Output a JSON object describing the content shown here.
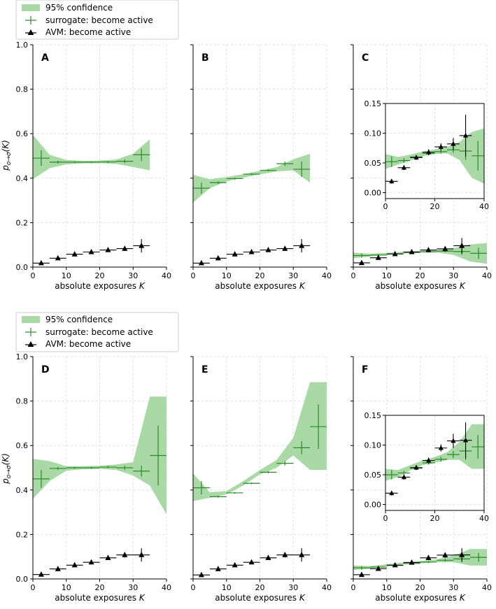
{
  "legend": {
    "confidence_label": "95% confidence",
    "surrogate_label": "surrogate: become active",
    "avm_label": "AVM: become active"
  },
  "colors": {
    "band": "#a9d9a4",
    "surrogate": "#2a8a2a",
    "avm": "#000000",
    "grid": "#d9d9d9"
  },
  "y_axis_label": "p_{o→σ}(K)",
  "chart_data": [
    {
      "type": "line",
      "panel": "A",
      "xlabel": "absolute exposures K",
      "ylabel": "p_{o→σ}(K)",
      "xlim": [
        0,
        40
      ],
      "ylim": [
        0,
        1.0
      ],
      "xticks": [
        0,
        10,
        20,
        30,
        40
      ],
      "yticks": [
        0.0,
        0.2,
        0.4,
        0.6,
        0.8,
        1.0
      ],
      "ytick_labels": [
        "0.0",
        "0.2",
        "0.4",
        "0.6",
        "0.8",
        "1.0"
      ],
      "band": [
        [
          0,
          0.395,
          0.595
        ],
        [
          5,
          0.445,
          0.505
        ],
        [
          10,
          0.462,
          0.482
        ],
        [
          15,
          0.466,
          0.478
        ],
        [
          20,
          0.467,
          0.479
        ],
        [
          25,
          0.464,
          0.484
        ],
        [
          30,
          0.45,
          0.51
        ],
        [
          35,
          0.435,
          0.575
        ]
      ],
      "surrogate": [
        [
          2.5,
          0.49,
          0.035
        ],
        [
          7.5,
          0.472,
          0.006
        ],
        [
          12.5,
          0.472,
          0.004
        ],
        [
          17.5,
          0.472,
          0.003
        ],
        [
          22.5,
          0.473,
          0.004
        ],
        [
          27.5,
          0.476,
          0.008
        ],
        [
          32.5,
          0.505,
          0.028
        ]
      ],
      "avm": [
        [
          2.5,
          0.018,
          0.003
        ],
        [
          7.5,
          0.04,
          0.004
        ],
        [
          12.5,
          0.058,
          0.005
        ],
        [
          17.5,
          0.068,
          0.006
        ],
        [
          22.5,
          0.077,
          0.007
        ],
        [
          27.5,
          0.083,
          0.01
        ],
        [
          32.5,
          0.096,
          0.03
        ]
      ],
      "inset": null
    },
    {
      "type": "line",
      "panel": "B",
      "xlabel": "absolute exposures K",
      "ylabel": "",
      "xlim": [
        0,
        40
      ],
      "ylim": [
        0,
        1.0
      ],
      "xticks": [
        0,
        10,
        20,
        30,
        40
      ],
      "yticks": [
        0.0,
        0.2,
        0.4,
        0.6,
        0.8,
        1.0
      ],
      "ytick_labels": [],
      "band": [
        [
          0,
          0.29,
          0.415
        ],
        [
          5,
          0.355,
          0.395
        ],
        [
          10,
          0.385,
          0.405
        ],
        [
          15,
          0.402,
          0.418
        ],
        [
          20,
          0.417,
          0.433
        ],
        [
          25,
          0.43,
          0.45
        ],
        [
          30,
          0.435,
          0.485
        ],
        [
          35,
          0.38,
          0.51
        ]
      ],
      "surrogate": [
        [
          2.5,
          0.355,
          0.025
        ],
        [
          7.5,
          0.38,
          0.006
        ],
        [
          12.5,
          0.398,
          0.004
        ],
        [
          17.5,
          0.418,
          0.004
        ],
        [
          22.5,
          0.435,
          0.004
        ],
        [
          27.5,
          0.465,
          0.01
        ],
        [
          32.5,
          0.44,
          0.035
        ]
      ],
      "avm": [
        [
          2.5,
          0.018,
          0.003
        ],
        [
          7.5,
          0.04,
          0.004
        ],
        [
          12.5,
          0.058,
          0.005
        ],
        [
          17.5,
          0.068,
          0.006
        ],
        [
          22.5,
          0.077,
          0.007
        ],
        [
          27.5,
          0.083,
          0.01
        ],
        [
          32.5,
          0.096,
          0.03
        ]
      ],
      "inset": null
    },
    {
      "type": "line",
      "panel": "C",
      "xlabel": "absolute exposures K",
      "ylabel": "",
      "xlim": [
        0,
        40
      ],
      "ylim": [
        0,
        1.0
      ],
      "xticks": [
        0,
        10,
        20,
        30,
        40
      ],
      "yticks": [
        0.0,
        0.2,
        0.4,
        0.6,
        0.8,
        1.0
      ],
      "ytick_labels": [],
      "band": [
        [
          0,
          0.04,
          0.065
        ],
        [
          5,
          0.047,
          0.06
        ],
        [
          10,
          0.054,
          0.064
        ],
        [
          15,
          0.061,
          0.069
        ],
        [
          20,
          0.065,
          0.073
        ],
        [
          25,
          0.066,
          0.077
        ],
        [
          30,
          0.055,
          0.085
        ],
        [
          35,
          0.025,
          0.102
        ],
        [
          40,
          0.015,
          0.108
        ]
      ],
      "surrogate": [
        [
          2.5,
          0.052,
          0.009
        ],
        [
          7.5,
          0.054,
          0.004
        ],
        [
          12.5,
          0.06,
          0.003
        ],
        [
          17.5,
          0.066,
          0.003
        ],
        [
          22.5,
          0.069,
          0.003
        ],
        [
          27.5,
          0.072,
          0.005
        ],
        [
          32.5,
          0.07,
          0.015
        ],
        [
          37.5,
          0.062,
          0.025
        ]
      ],
      "avm": [
        [
          2.5,
          0.019,
          0.004
        ],
        [
          7.5,
          0.042,
          0.004
        ],
        [
          12.5,
          0.059,
          0.004
        ],
        [
          17.5,
          0.068,
          0.005
        ],
        [
          22.5,
          0.077,
          0.006
        ],
        [
          27.5,
          0.082,
          0.01
        ],
        [
          32.5,
          0.096,
          0.035
        ]
      ],
      "inset": {
        "xlim": [
          0,
          40
        ],
        "ylim": [
          -0.01,
          0.15
        ],
        "xticks": [
          0,
          20,
          40
        ],
        "yticks": [
          0.0,
          0.05,
          0.1,
          0.15
        ],
        "ytick_labels": [
          "0.00",
          "0.05",
          "0.10",
          "0.15"
        ]
      }
    },
    {
      "type": "line",
      "panel": "D",
      "xlabel": "absolute exposures K",
      "ylabel": "p_{o→σ}(K)",
      "xlim": [
        0,
        40
      ],
      "ylim": [
        0,
        1.0
      ],
      "xticks": [
        0,
        10,
        20,
        30,
        40
      ],
      "yticks": [
        0.0,
        0.2,
        0.4,
        0.6,
        0.8,
        1.0
      ],
      "ytick_labels": [
        "0.0",
        "0.2",
        "0.4",
        "0.6",
        "0.8",
        "1.0"
      ],
      "band": [
        [
          0,
          0.36,
          0.54
        ],
        [
          5,
          0.44,
          0.53
        ],
        [
          10,
          0.487,
          0.507
        ],
        [
          15,
          0.493,
          0.507
        ],
        [
          20,
          0.495,
          0.509
        ],
        [
          25,
          0.49,
          0.515
        ],
        [
          30,
          0.465,
          0.525
        ],
        [
          35,
          0.42,
          0.82
        ],
        [
          40,
          0.29,
          0.82
        ]
      ],
      "surrogate": [
        [
          2.5,
          0.45,
          0.04
        ],
        [
          7.5,
          0.497,
          0.006
        ],
        [
          12.5,
          0.5,
          0.004
        ],
        [
          17.5,
          0.5,
          0.004
        ],
        [
          22.5,
          0.503,
          0.005
        ],
        [
          27.5,
          0.5,
          0.01
        ],
        [
          32.5,
          0.485,
          0.025
        ],
        [
          37.5,
          0.555,
          0.135
        ]
      ],
      "avm": [
        [
          2.5,
          0.02,
          0.003
        ],
        [
          7.5,
          0.045,
          0.004
        ],
        [
          12.5,
          0.062,
          0.005
        ],
        [
          17.5,
          0.075,
          0.006
        ],
        [
          22.5,
          0.095,
          0.007
        ],
        [
          27.5,
          0.108,
          0.012
        ],
        [
          32.5,
          0.108,
          0.03
        ]
      ],
      "inset": null
    },
    {
      "type": "line",
      "panel": "E",
      "xlabel": "absolute exposures K",
      "ylabel": "",
      "xlim": [
        0,
        40
      ],
      "ylim": [
        0,
        1.0
      ],
      "xticks": [
        0,
        10,
        20,
        30,
        40
      ],
      "yticks": [
        0.0,
        0.2,
        0.4,
        0.6,
        0.8,
        1.0
      ],
      "ytick_labels": [],
      "band": [
        [
          0,
          0.35,
          0.475
        ],
        [
          5,
          0.365,
          0.39
        ],
        [
          10,
          0.38,
          0.395
        ],
        [
          15,
          0.42,
          0.44
        ],
        [
          20,
          0.47,
          0.49
        ],
        [
          25,
          0.5,
          0.535
        ],
        [
          30,
          0.555,
          0.635
        ],
        [
          35,
          0.49,
          0.885
        ],
        [
          40,
          0.49,
          0.885
        ]
      ],
      "surrogate": [
        [
          2.5,
          0.41,
          0.03
        ],
        [
          7.5,
          0.37,
          0.005
        ],
        [
          12.5,
          0.387,
          0.004
        ],
        [
          17.5,
          0.43,
          0.004
        ],
        [
          22.5,
          0.48,
          0.005
        ],
        [
          27.5,
          0.52,
          0.01
        ],
        [
          32.5,
          0.59,
          0.03
        ],
        [
          37.5,
          0.685,
          0.1
        ]
      ],
      "avm": [
        [
          2.5,
          0.018,
          0.003
        ],
        [
          7.5,
          0.045,
          0.004
        ],
        [
          12.5,
          0.062,
          0.005
        ],
        [
          17.5,
          0.075,
          0.006
        ],
        [
          22.5,
          0.095,
          0.007
        ],
        [
          27.5,
          0.108,
          0.012
        ],
        [
          32.5,
          0.108,
          0.03
        ]
      ],
      "inset": null
    },
    {
      "type": "line",
      "panel": "F",
      "xlabel": "absolute exposures K",
      "ylabel": "",
      "xlim": [
        0,
        40
      ],
      "ylim": [
        0,
        1.0
      ],
      "xticks": [
        0,
        10,
        20,
        30,
        40
      ],
      "yticks": [
        0.0,
        0.2,
        0.4,
        0.6,
        0.8,
        1.0
      ],
      "ytick_labels": [],
      "band": [
        [
          0,
          0.04,
          0.06
        ],
        [
          5,
          0.046,
          0.058
        ],
        [
          10,
          0.057,
          0.066
        ],
        [
          15,
          0.066,
          0.074
        ],
        [
          20,
          0.07,
          0.08
        ],
        [
          25,
          0.075,
          0.088
        ],
        [
          30,
          0.075,
          0.105
        ],
        [
          35,
          0.06,
          0.135
        ],
        [
          40,
          0.06,
          0.135
        ]
      ],
      "surrogate": [
        [
          2.5,
          0.05,
          0.008
        ],
        [
          7.5,
          0.053,
          0.004
        ],
        [
          12.5,
          0.061,
          0.003
        ],
        [
          17.5,
          0.07,
          0.003
        ],
        [
          22.5,
          0.076,
          0.004
        ],
        [
          27.5,
          0.084,
          0.006
        ],
        [
          32.5,
          0.09,
          0.015
        ],
        [
          37.5,
          0.097,
          0.02
        ]
      ],
      "avm": [
        [
          2.5,
          0.019,
          0.004
        ],
        [
          7.5,
          0.046,
          0.004
        ],
        [
          12.5,
          0.062,
          0.004
        ],
        [
          17.5,
          0.074,
          0.005
        ],
        [
          22.5,
          0.095,
          0.006
        ],
        [
          27.5,
          0.107,
          0.012
        ],
        [
          32.5,
          0.108,
          0.03
        ]
      ],
      "inset": {
        "xlim": [
          0,
          40
        ],
        "ylim": [
          -0.01,
          0.15
        ],
        "xticks": [
          0,
          20,
          40
        ],
        "yticks": [
          0.0,
          0.05,
          0.1,
          0.15
        ],
        "ytick_labels": [
          "0.00",
          "0.05",
          "0.10",
          "0.15"
        ]
      }
    }
  ]
}
